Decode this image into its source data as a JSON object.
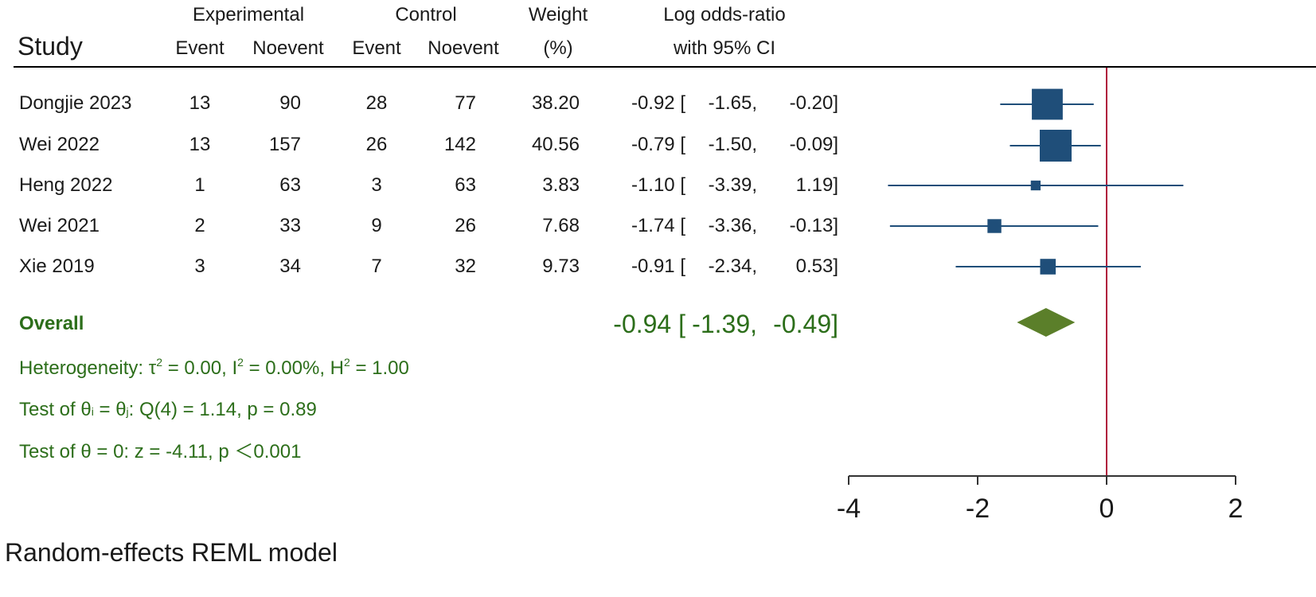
{
  "headers": {
    "study": "Study",
    "experimental": "Experimental",
    "control": "Control",
    "event_exp": "Event",
    "noevent_exp": "Noevent",
    "event_ctrl": "Event",
    "noevent_ctrl": "Noevent",
    "weight": "Weight",
    "weight_unit": "(%)",
    "effect": "Log odds-ratio",
    "effect_sub": "with 95% CI"
  },
  "rows": [
    {
      "study": "Dongjie 2023",
      "exp_event": "13",
      "exp_noevent": "90",
      "ctrl_event": "28",
      "ctrl_noevent": "77",
      "weight": "38.20",
      "est": "-0.92 [",
      "lo": "-1.65,",
      "hi": "-0.20]"
    },
    {
      "study": "Wei 2022",
      "exp_event": "13",
      "exp_noevent": "157",
      "ctrl_event": "26",
      "ctrl_noevent": "142",
      "weight": "40.56",
      "est": "-0.79 [",
      "lo": "-1.50,",
      "hi": "-0.09]"
    },
    {
      "study": "Heng 2022",
      "exp_event": "1",
      "exp_noevent": "63",
      "ctrl_event": "3",
      "ctrl_noevent": "63",
      "weight": "3.83",
      "est": "-1.10 [",
      "lo": "-3.39,",
      "hi": "1.19]"
    },
    {
      "study": "Wei 2021",
      "exp_event": "2",
      "exp_noevent": "33",
      "ctrl_event": "9",
      "ctrl_noevent": "26",
      "weight": "7.68",
      "est": "-1.74 [",
      "lo": "-3.36,",
      "hi": "-0.13]"
    },
    {
      "study": "Xie 2019",
      "exp_event": "3",
      "exp_noevent": "34",
      "ctrl_event": "7",
      "ctrl_noevent": "32",
      "weight": "9.73",
      "est": "-0.91 [",
      "lo": "-2.34,",
      "hi": "0.53]"
    }
  ],
  "overall": {
    "label": "Overall",
    "est": "-0.94 [",
    "lo": "-1.39,",
    "hi": "-0.49]"
  },
  "stats": {
    "heterogeneity_prefix": "Heterogeneity: τ",
    "tau_exp": "2",
    "tau_val": " = 0.00, I",
    "i_exp": "2",
    "i_val": " = 0.00%, H",
    "h_exp": "2",
    "h_val": " = 1.00",
    "test1_a": "Test of θ",
    "test1_i": "i",
    "test1_b": " = θ",
    "test1_j": "j",
    "test1_c": ": Q(4) = 1.14, p = 0.89",
    "test2": "Test of θ = 0: z = -4.11, p ＜0.001"
  },
  "model_label": "Random-effects REML model",
  "colors": {
    "study_marker": "#1f4e79",
    "overall_diamond": "#5b7f2a",
    "null_line": "#b0143c",
    "text_green": "#2c6e1a"
  },
  "chart_data": {
    "type": "forest",
    "x_ticks": [
      -4,
      -2,
      0,
      2
    ],
    "x_tick_labels": [
      "-4",
      "-2",
      "0",
      "2"
    ],
    "xlim": [
      -4,
      2
    ],
    "null_value": 0,
    "studies": [
      {
        "name": "Dongjie 2023",
        "estimate": -0.92,
        "ci_low": -1.65,
        "ci_high": -0.2,
        "weight": 38.2
      },
      {
        "name": "Wei 2022",
        "estimate": -0.79,
        "ci_low": -1.5,
        "ci_high": -0.09,
        "weight": 40.56
      },
      {
        "name": "Heng 2022",
        "estimate": -1.1,
        "ci_low": -3.39,
        "ci_high": 1.19,
        "weight": 3.83
      },
      {
        "name": "Wei 2021",
        "estimate": -1.74,
        "ci_low": -3.36,
        "ci_high": -0.13,
        "weight": 7.68
      },
      {
        "name": "Xie 2019",
        "estimate": -0.91,
        "ci_low": -2.34,
        "ci_high": 0.53,
        "weight": 9.73
      }
    ],
    "overall": {
      "name": "Overall",
      "estimate": -0.94,
      "ci_low": -1.39,
      "ci_high": -0.49
    }
  }
}
